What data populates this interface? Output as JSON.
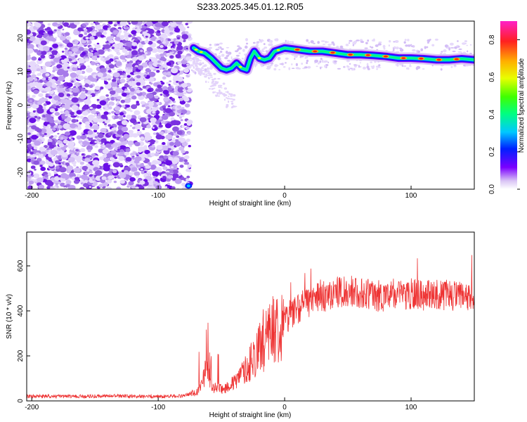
{
  "title": "S233.2025.345.01.12.R05",
  "chart_data": [
    {
      "type": "heatmap",
      "xlabel": "Height of straight line (km)",
      "ylabel": "Frequency (Hz)",
      "xlim": [
        -204,
        150
      ],
      "ylim": [
        -25,
        25
      ],
      "xticks": [
        -200,
        -100,
        0,
        100
      ],
      "yticks": [
        -20,
        -10,
        0,
        10,
        20
      ],
      "colorbar": {
        "label": "Normalized spectral amplitude",
        "range": [
          0,
          0.9
        ],
        "ticks": [
          0.0,
          0.2,
          0.4,
          0.6,
          0.8
        ],
        "colormap": "rainbow"
      },
      "ridge": {
        "x": [
          -72,
          -68,
          -63,
          -58,
          -54,
          -50,
          -46,
          -42,
          -38,
          -34,
          -30,
          -27,
          -24,
          -20,
          -16,
          -12,
          -8,
          -4,
          0,
          10,
          20,
          30,
          40,
          50,
          60,
          70,
          80,
          90,
          100,
          110,
          120,
          130,
          140,
          150
        ],
        "y": [
          17,
          16,
          15.5,
          14,
          12.5,
          11,
          10.5,
          11,
          12.5,
          11,
          10.5,
          14,
          16,
          14,
          13.5,
          14,
          16,
          16.5,
          17,
          16.5,
          16,
          16,
          15.5,
          15,
          15,
          14.8,
          14.5,
          14,
          14,
          13.8,
          13.5,
          13.5,
          13.8,
          13.5
        ]
      }
    },
    {
      "type": "line",
      "xlabel": "Height of straight line (km)",
      "ylabel": "SNR (10 * v/v)",
      "xlim": [
        -204,
        150
      ],
      "ylim": [
        0,
        750
      ],
      "xticks": [
        -200,
        -100,
        0,
        100
      ],
      "yticks": [
        0,
        200,
        400,
        600
      ],
      "series": [
        {
          "color": "#ee3333",
          "x": [
            -204,
            -180,
            -160,
            -140,
            -120,
            -100,
            -80,
            -70,
            -65,
            -62,
            -60,
            -58,
            -55,
            -50,
            -45,
            -40,
            -35,
            -30,
            -25,
            -20,
            -15,
            -10,
            -5,
            0,
            5,
            10,
            15,
            20,
            30,
            40,
            50,
            60,
            70,
            80,
            90,
            100,
            110,
            120,
            130,
            140,
            150
          ],
          "values": [
            20,
            20,
            20,
            22,
            20,
            20,
            22,
            40,
            80,
            150,
            110,
            70,
            60,
            50,
            65,
            80,
            110,
            150,
            190,
            230,
            270,
            310,
            340,
            360,
            390,
            410,
            430,
            440,
            460,
            480,
            490,
            480,
            470,
            460,
            470,
            475,
            470,
            475,
            470,
            460,
            450
          ]
        }
      ]
    }
  ]
}
